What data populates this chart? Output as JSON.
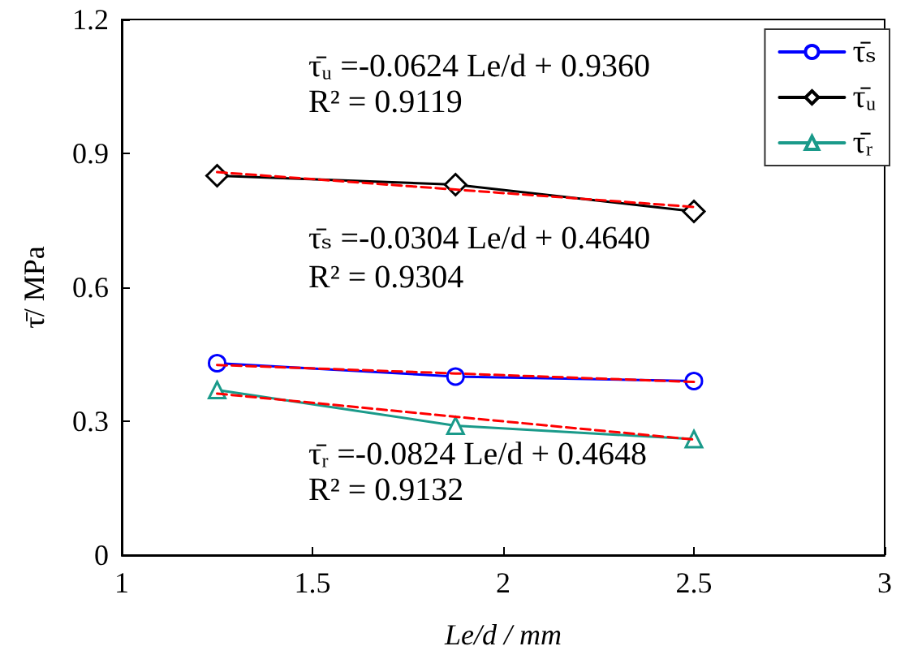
{
  "chart_data": {
    "type": "line",
    "xlabel": "Le/d / mm",
    "ylabel": "τ̄/ MPa",
    "x": [
      1.25,
      1.875,
      2.5
    ],
    "series": [
      {
        "name": "τ̄ₛ",
        "color": "#0000ff",
        "marker": "circle",
        "values": [
          0.43,
          0.4,
          0.39
        ]
      },
      {
        "name": "τ̄ᵤ",
        "color": "#000000",
        "marker": "diamond",
        "values": [
          0.85,
          0.83,
          0.77
        ]
      },
      {
        "name": "τ̄ᵣ",
        "color": "#1a9a8a",
        "marker": "triangle",
        "values": [
          0.37,
          0.29,
          0.26
        ]
      },
      {
        "color": "#ff0000",
        "marker": "none",
        "line_style": "dashed",
        "values": [
          0.858,
          0.819,
          0.78
        ]
      },
      {
        "color": "#ff0000",
        "marker": "none",
        "line_style": "dashed",
        "values": [
          0.426,
          0.407,
          0.388
        ]
      },
      {
        "color": "#ff0000",
        "marker": "none",
        "line_style": "dashed",
        "values": [
          0.362,
          0.31,
          0.259
        ]
      }
    ],
    "annotations": [
      "τ̄ᵤ =-0.0624 Le/d + 0.9360",
      "R² = 0.9119",
      "τ̄ₛ =-0.0304 Le/d + 0.4640",
      "R² = 0.9304",
      "τ̄ᵣ =-0.0824 Le/d + 0.4648",
      "R² = 0.9132"
    ],
    "xlim": [
      1,
      3
    ],
    "xticks": [
      1,
      1.5,
      2,
      2.5,
      3
    ],
    "ylim": [
      0,
      1.2
    ],
    "yticks": [
      0,
      0.3,
      0.6,
      0.9,
      1.2
    ],
    "grid": false,
    "legend": "top right"
  }
}
